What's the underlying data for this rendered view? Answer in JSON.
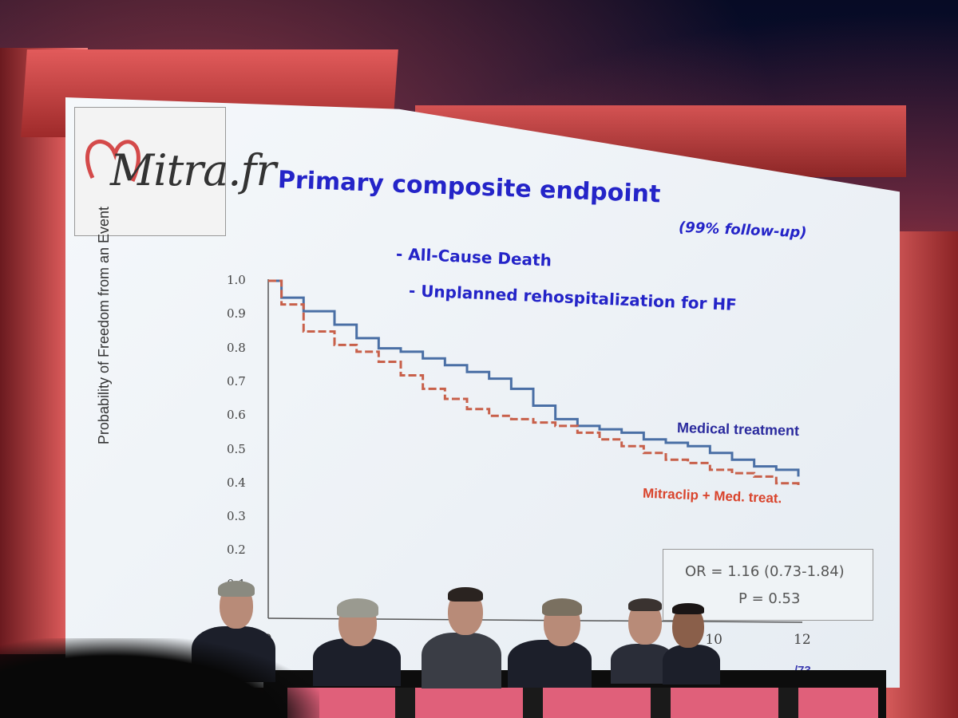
{
  "slide": {
    "logo_text": "Mitra.fr",
    "title": "Primary composite endpoint",
    "follow_up": "(99% follow-up)",
    "bullets": [
      "- All-Cause Death",
      "- Unplanned rehospitalization for HF"
    ],
    "slide_number": "/73"
  },
  "chart_data": {
    "type": "line",
    "title": "",
    "ylabel": "Probability of Freedom from an Event",
    "xlabel": "",
    "ylim": [
      0,
      1.0
    ],
    "xlim": [
      0,
      12
    ],
    "y_ticks": [
      "0.1",
      "0.2",
      "0.3",
      "0.4",
      "0.5",
      "0.6",
      "0.7",
      "0.8",
      "0.9",
      "1.0"
    ],
    "x_ticks": [
      "0",
      "10",
      "12"
    ],
    "series": [
      {
        "name": "Medical treatment",
        "color": "#4a6fa5",
        "x": [
          0,
          0.3,
          0.8,
          1.5,
          2.0,
          2.5,
          3.0,
          3.5,
          4.0,
          4.5,
          5.0,
          5.5,
          6.0,
          6.5,
          7.0,
          7.5,
          8.0,
          8.5,
          9.0,
          9.5,
          10.0,
          10.5,
          11.0,
          11.5,
          12.0
        ],
        "y": [
          1.0,
          0.95,
          0.91,
          0.87,
          0.83,
          0.8,
          0.79,
          0.77,
          0.75,
          0.73,
          0.71,
          0.68,
          0.63,
          0.59,
          0.57,
          0.56,
          0.55,
          0.53,
          0.52,
          0.51,
          0.49,
          0.47,
          0.45,
          0.44,
          0.42
        ]
      },
      {
        "name": "Mitraclip + Med. treat.",
        "color": "#c8604a",
        "x": [
          0,
          0.3,
          0.8,
          1.5,
          2.0,
          2.5,
          3.0,
          3.5,
          4.0,
          4.5,
          5.0,
          5.5,
          6.0,
          6.5,
          7.0,
          7.5,
          8.0,
          8.5,
          9.0,
          9.5,
          10.0,
          10.5,
          11.0,
          11.5,
          12.0
        ],
        "y": [
          1.0,
          0.93,
          0.85,
          0.81,
          0.79,
          0.76,
          0.72,
          0.68,
          0.65,
          0.62,
          0.6,
          0.59,
          0.58,
          0.57,
          0.55,
          0.53,
          0.51,
          0.49,
          0.47,
          0.46,
          0.44,
          0.43,
          0.42,
          0.4,
          0.39
        ]
      }
    ],
    "annotations": [
      "OR = 1.16 (0.73-1.84)",
      "P = 0.53"
    ]
  },
  "colors": {
    "title": "#2424c8",
    "medical_label": "#2b2b9e",
    "mitraclip_label": "#d9442c",
    "stage_red": "#d45656"
  }
}
